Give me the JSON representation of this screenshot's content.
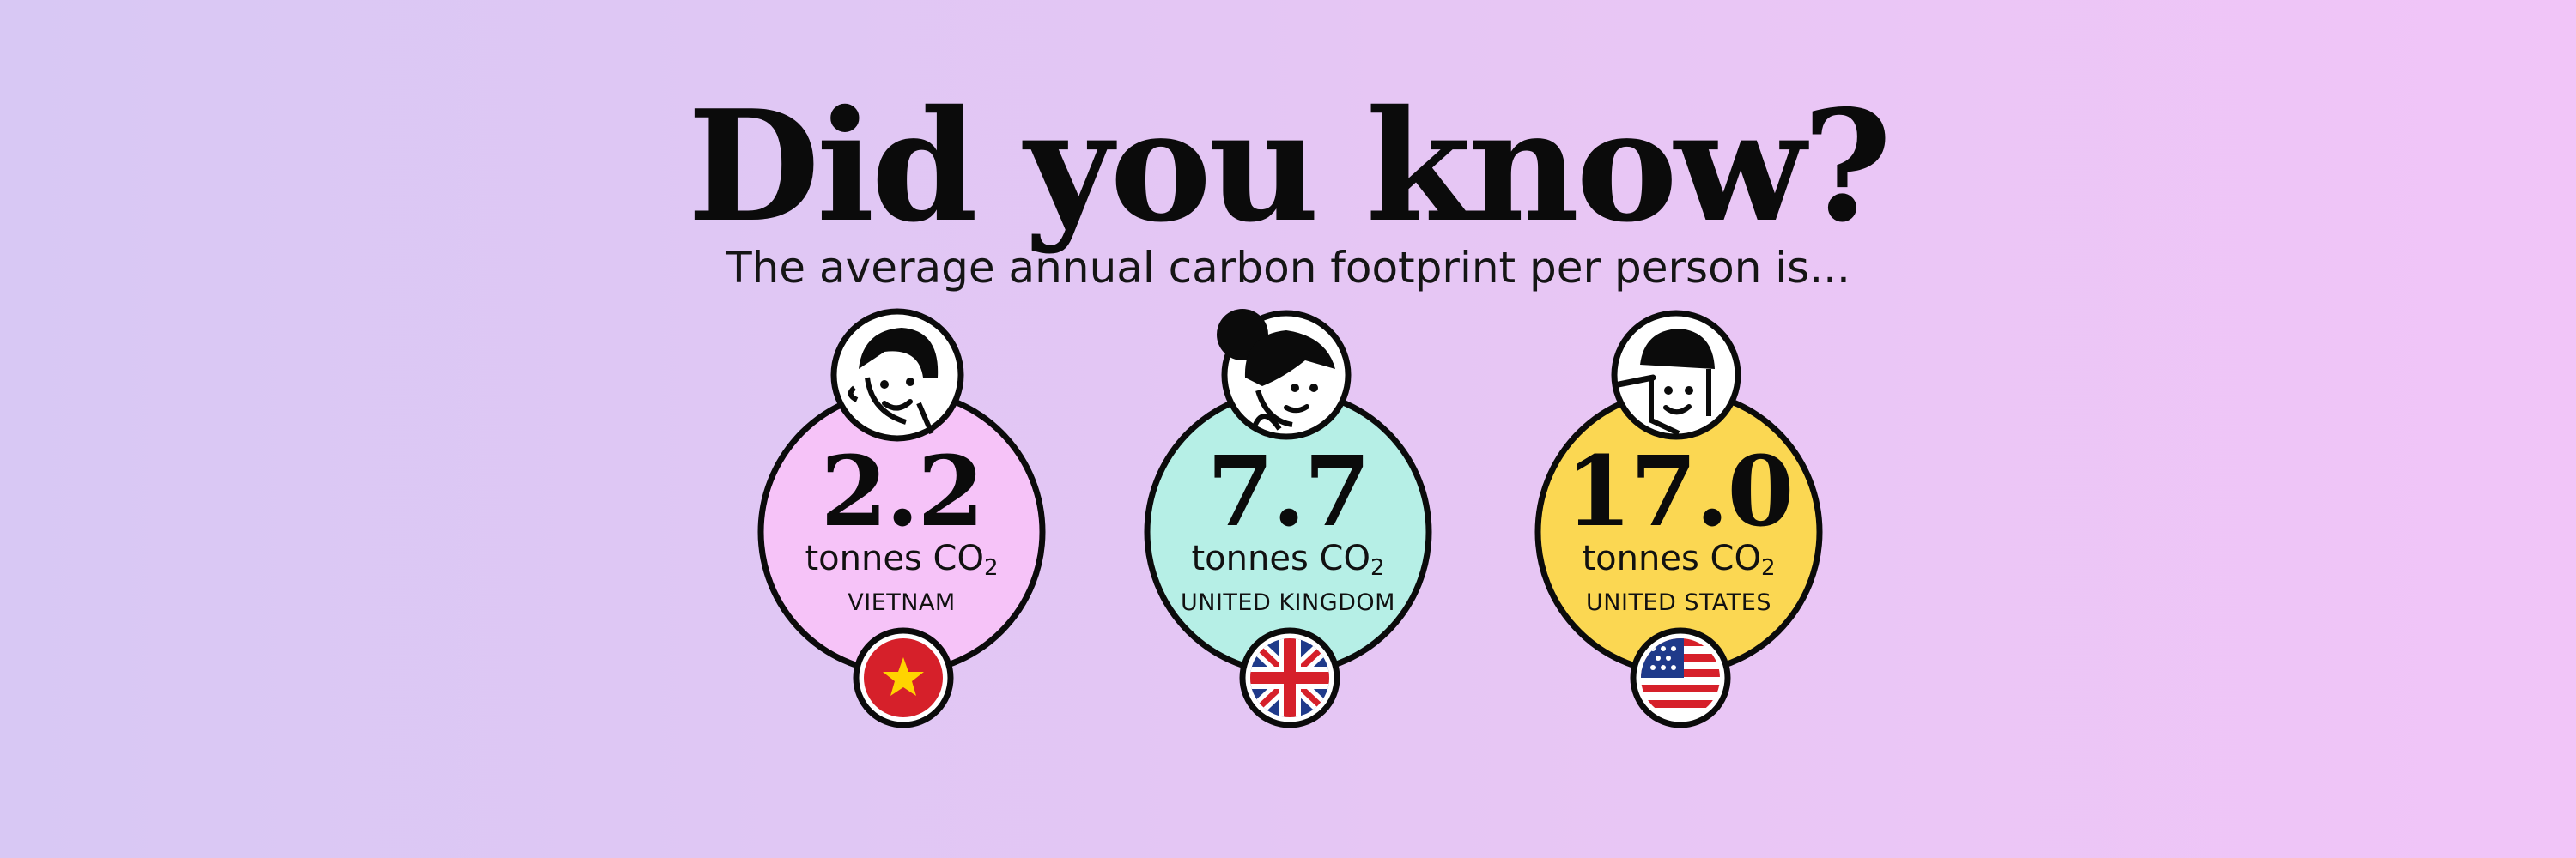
{
  "heading": "Did you know?",
  "subheading": "The average annual carbon footprint per person is...",
  "cards": [
    {
      "value": "2.2",
      "unit": "tonnes CO",
      "unit_sub": "2",
      "country": "VIETNAM",
      "bubble_color": "#f6c3f8",
      "flag": "vietnam-flag-icon",
      "avatar": "smiling-man-avatar-icon"
    },
    {
      "value": "7.7",
      "unit": "tonnes CO",
      "unit_sub": "2",
      "country": "UNITED KINGDOM",
      "bubble_color": "#b6efe6",
      "flag": "uk-flag-icon",
      "avatar": "woman-bun-avatar-icon"
    },
    {
      "value": "17.0",
      "unit": "tonnes CO",
      "unit_sub": "2",
      "country": "UNITED STATES",
      "bubble_color": "#fbd752",
      "flag": "us-flag-icon",
      "avatar": "man-cap-avatar-icon"
    }
  ],
  "colors": {
    "outline": "#0b0b0b",
    "flag_red": "#d6202a",
    "flag_blue": "#1f3a8a",
    "star_yellow": "#ffd400"
  }
}
